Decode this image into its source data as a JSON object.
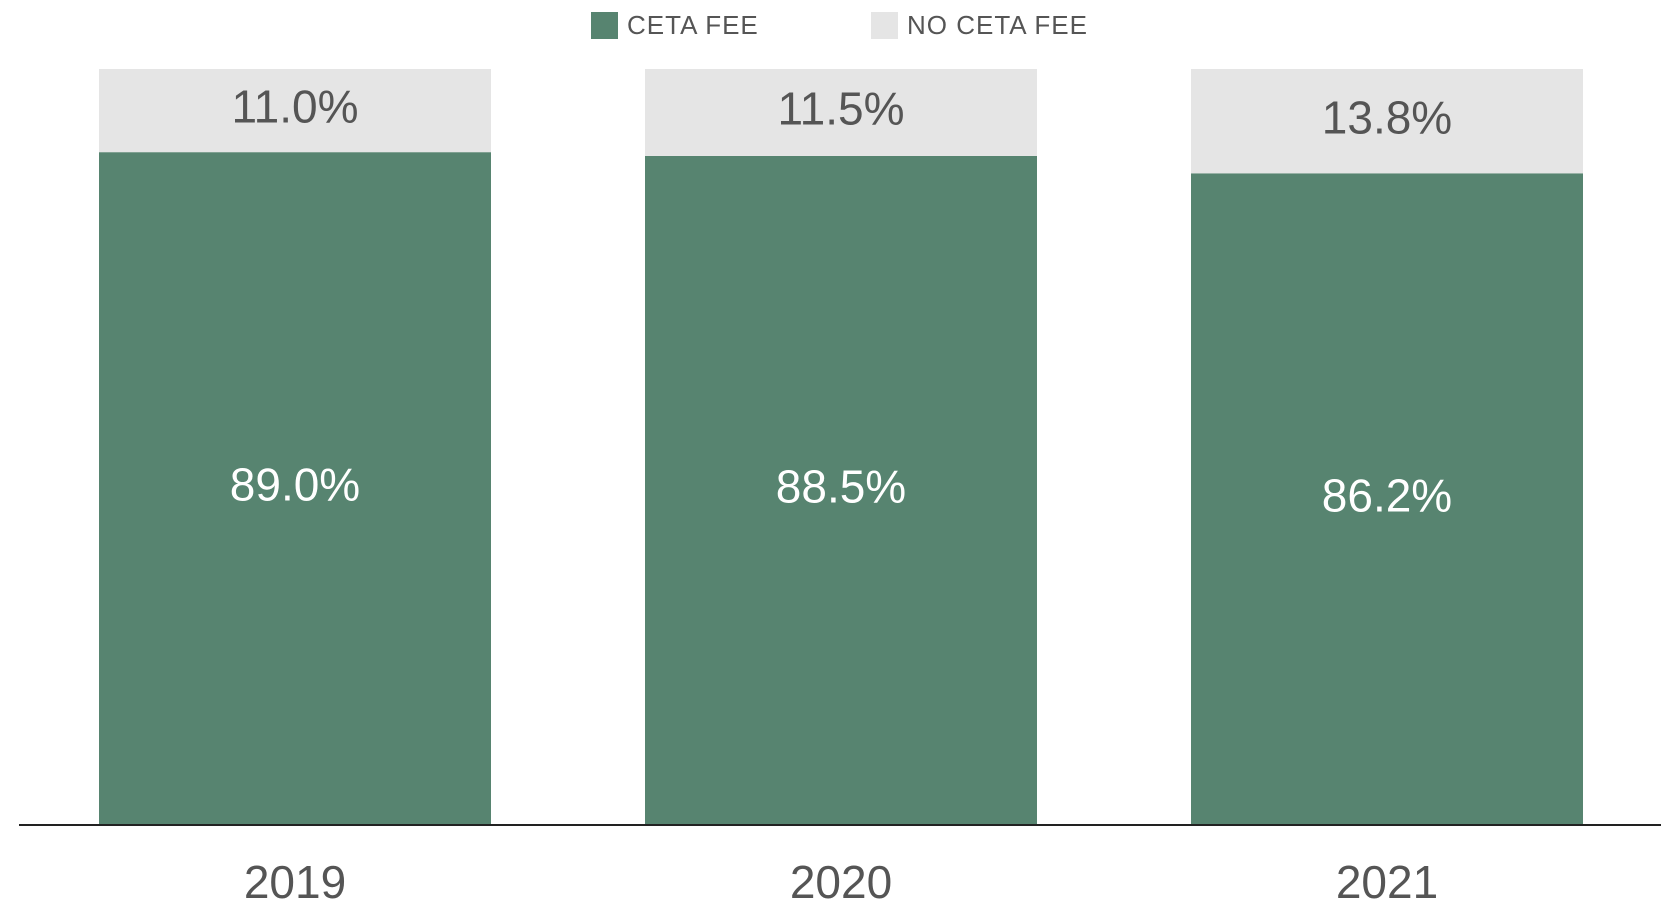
{
  "chart_data": {
    "type": "stacked_bar",
    "categories": [
      "2019",
      "2020",
      "2021"
    ],
    "series": [
      {
        "name": "CETA FEE",
        "color": "#578470",
        "values": [
          89.0,
          88.5,
          86.2
        ],
        "value_labels": [
          "89.0%",
          "88.5%",
          "86.2%"
        ]
      },
      {
        "name": "NO CETA FEE",
        "color": "#e5e5e5",
        "values": [
          11.0,
          11.5,
          13.8
        ],
        "value_labels": [
          "11.0%",
          "11.5%",
          "13.8%"
        ]
      }
    ],
    "ylim": [
      0,
      100
    ]
  }
}
